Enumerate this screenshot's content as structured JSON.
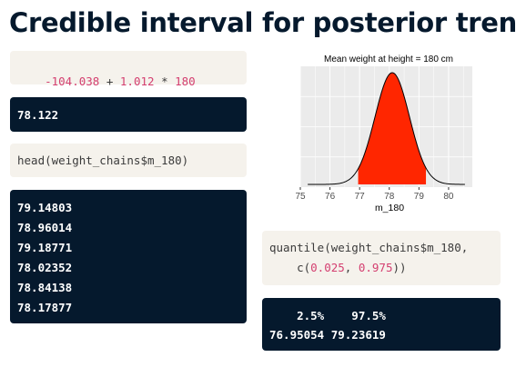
{
  "page": {
    "title": "Credible interval for posterior trend"
  },
  "cell1": {
    "input_parts": [
      "-104.038",
      " + ",
      "1.012",
      " * ",
      "180"
    ],
    "output": "78.122"
  },
  "cell2": {
    "input": "head(weight_chains$m_180)",
    "output_lines": [
      "79.14803",
      "78.96014",
      "79.18771",
      "78.02352",
      "78.84138",
      "78.17877"
    ]
  },
  "cell3": {
    "input_line1": "quantile(weight_chains$m_180,",
    "input_line2_parts": [
      "    c(",
      "0.025",
      ", ",
      "0.975",
      "))"
    ],
    "output_header": "    2.5%    97.5%",
    "output_values": "76.95054 79.23619"
  },
  "colors": {
    "panel_bg": "#ebebeb",
    "shaded_fill": "#ff2600",
    "curve": "#000000",
    "code_bg": "#f5f2ec",
    "output_bg": "#05192d",
    "number_literal": "#d43f70"
  },
  "chart_data": {
    "type": "area",
    "title": "Mean weight at height = 180 cm",
    "xlabel": "m_180",
    "ylabel": "",
    "xlim": [
      75,
      80.8
    ],
    "x_ticks": [
      75,
      76,
      77,
      78,
      79,
      80
    ],
    "grid": true,
    "density": {
      "distribution": "normal",
      "mean": 78.1,
      "sd": 0.58
    },
    "shaded_interval": [
      76.95054,
      79.23619
    ]
  }
}
